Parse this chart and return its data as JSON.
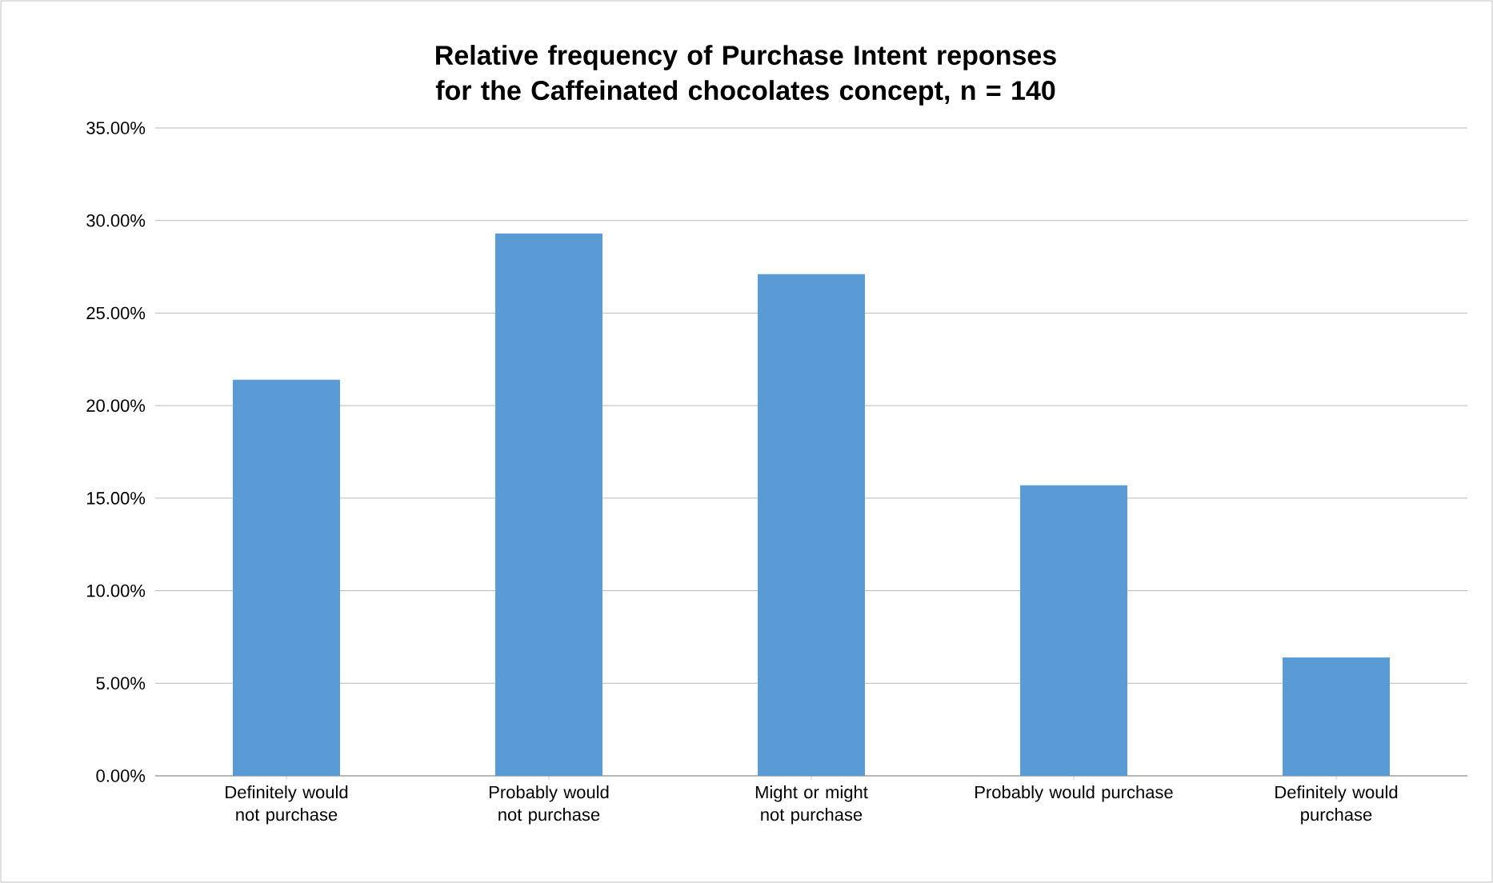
{
  "chart_data": {
    "type": "bar",
    "title": "Relative frequency of Purchase Intent reponses for the Caffeinated chocolates concept, n = 140",
    "categories": [
      "Definitely would not purchase",
      "Probably would not purchase",
      "Might or might not purchase",
      "Probably would purchase",
      "Definitely would purchase"
    ],
    "values": [
      21.4,
      29.3,
      27.1,
      15.7,
      6.4
    ],
    "color": "#5b9bd5",
    "ylim": [
      0,
      35
    ],
    "yticks": [
      {
        "value": 0,
        "label": "0.00%"
      },
      {
        "value": 5,
        "label": "5.00%"
      },
      {
        "value": 10,
        "label": "10.00%"
      },
      {
        "value": 15,
        "label": "15.00%"
      },
      {
        "value": 20,
        "label": "20.00%"
      },
      {
        "value": 25,
        "label": "25.00%"
      },
      {
        "value": 30,
        "label": "30.00%"
      },
      {
        "value": 35,
        "label": "35.00%"
      }
    ],
    "grid": "y"
  }
}
